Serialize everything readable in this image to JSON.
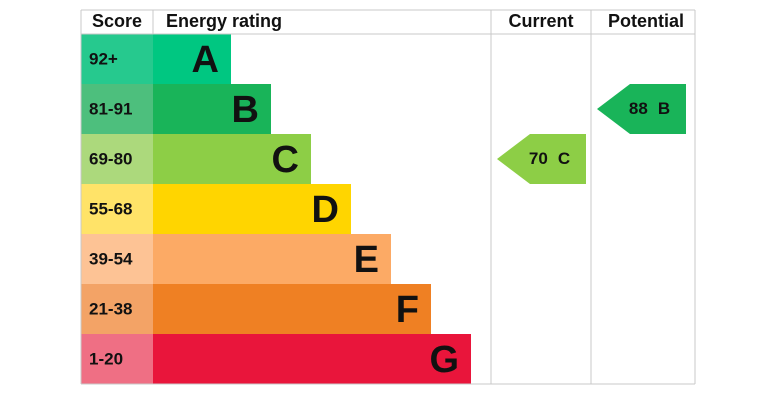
{
  "header": {
    "score": "Score",
    "energy_rating": "Energy rating",
    "current": "Current",
    "potential": "Potential"
  },
  "bands": [
    {
      "score": "92+",
      "letter": "A",
      "color": "#00c781",
      "score_color": "#26c98e"
    },
    {
      "score": "81-91",
      "letter": "B",
      "color": "#19b459",
      "score_color": "#4dbf7d"
    },
    {
      "score": "69-80",
      "letter": "C",
      "color": "#8dce46",
      "score_color": "#acd97c"
    },
    {
      "score": "55-68",
      "letter": "D",
      "color": "#ffd500",
      "score_color": "#ffe368"
    },
    {
      "score": "39-54",
      "letter": "E",
      "color": "#fcaa65",
      "score_color": "#fdc395"
    },
    {
      "score": "21-38",
      "letter": "F",
      "color": "#ef8023",
      "score_color": "#f3a366"
    },
    {
      "score": "1-20",
      "letter": "G",
      "color": "#e9153b",
      "score_color": "#ef6f84"
    }
  ],
  "current": {
    "value": 70,
    "letter": "C"
  },
  "potential": {
    "value": 88,
    "letter": "B"
  }
}
